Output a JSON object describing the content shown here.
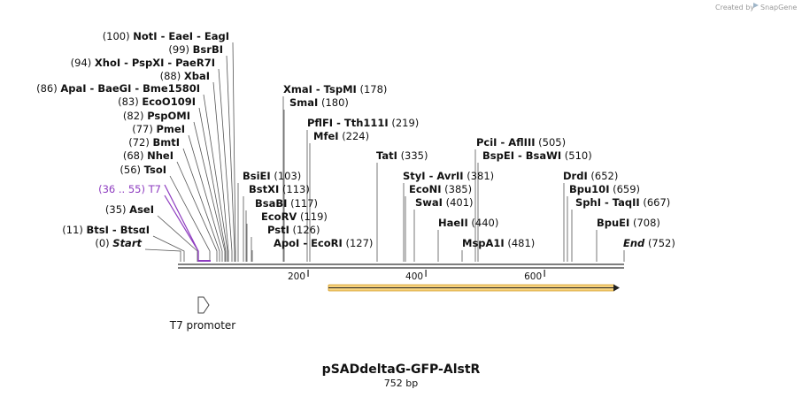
{
  "header": {
    "created_by": "Created by",
    "brand": "SnapGene"
  },
  "map": {
    "name": "pSADdeltaG-GFP-AlstR",
    "length_label": "752 bp"
  },
  "axis": {
    "ticks": [
      {
        "label": "200",
        "bp": 200
      },
      {
        "label": "400",
        "bp": 400
      },
      {
        "label": "600",
        "bp": 600
      }
    ]
  },
  "features": {
    "t7_promoter": {
      "label": "T7 promoter"
    },
    "orf_arrow": {
      "start_bp": 255,
      "end_bp": 752,
      "color": "#f0b040"
    }
  },
  "enzymes": [
    {
      "pos": "(0)",
      "names": [
        "Start"
      ],
      "italic": true,
      "bp": 0
    },
    {
      "pos": "(11)",
      "names": [
        "BtsI",
        "BtsαI"
      ],
      "bp": 11
    },
    {
      "pos": "(35)",
      "names": [
        "AseI"
      ],
      "bp": 35
    },
    {
      "pos": "(36 .. 55)",
      "names": [
        "T7"
      ],
      "site": true,
      "bp": 36
    },
    {
      "pos": "(56)",
      "names": [
        "TsoI"
      ],
      "bp": 56
    },
    {
      "pos": "(68)",
      "names": [
        "NheI"
      ],
      "bp": 68
    },
    {
      "pos": "(72)",
      "names": [
        "BmtI"
      ],
      "bp": 72
    },
    {
      "pos": "(77)",
      "names": [
        "PmeI"
      ],
      "bp": 77
    },
    {
      "pos": "(82)",
      "names": [
        "PspOMI"
      ],
      "bp": 82
    },
    {
      "pos": "(83)",
      "names": [
        "EcoO109I"
      ],
      "bp": 83
    },
    {
      "pos": "(86)",
      "names": [
        "ApaI",
        "BaeGI",
        "Bme1580I"
      ],
      "bp": 86
    },
    {
      "pos": "(88)",
      "names": [
        "XbaI"
      ],
      "bp": 88
    },
    {
      "pos": "(94)",
      "names": [
        "XhoI",
        "PspXI",
        "PaeR7I"
      ],
      "bp": 94
    },
    {
      "pos": "(99)",
      "names": [
        "BsrBI"
      ],
      "bp": 99
    },
    {
      "pos": "(100)",
      "names": [
        "NotI",
        "EaeI",
        "EagI"
      ],
      "bp": 100
    },
    {
      "pos": "(103)",
      "names": [
        "BsiEI"
      ],
      "bp": 103
    },
    {
      "pos": "(113)",
      "names": [
        "BstXI"
      ],
      "bp": 113
    },
    {
      "pos": "(117)",
      "names": [
        "BsaBI"
      ],
      "bp": 117
    },
    {
      "pos": "(119)",
      "names": [
        "EcoRV"
      ],
      "bp": 119
    },
    {
      "pos": "(126)",
      "names": [
        "PstI"
      ],
      "bp": 126
    },
    {
      "pos": "(127)",
      "names": [
        "ApoI",
        "EcoRI"
      ],
      "bp": 127
    },
    {
      "pos": "(178)",
      "names": [
        "XmaI",
        "TspMI"
      ],
      "bp": 178
    },
    {
      "pos": "(180)",
      "names": [
        "SmaI"
      ],
      "bp": 180
    },
    {
      "pos": "(219)",
      "names": [
        "PflFI",
        "Tth111I"
      ],
      "bp": 219
    },
    {
      "pos": "(224)",
      "names": [
        "MfeI"
      ],
      "bp": 224
    },
    {
      "pos": "(335)",
      "names": [
        "TatI"
      ],
      "bp": 335
    },
    {
      "pos": "(381)",
      "names": [
        "StyI",
        "AvrII"
      ],
      "bp": 381
    },
    {
      "pos": "(385)",
      "names": [
        "EcoNI"
      ],
      "bp": 385
    },
    {
      "pos": "(401)",
      "names": [
        "SwaI"
      ],
      "bp": 401
    },
    {
      "pos": "(440)",
      "names": [
        "HaeII"
      ],
      "bp": 440
    },
    {
      "pos": "(481)",
      "names": [
        "MspA1I"
      ],
      "bp": 481
    },
    {
      "pos": "(505)",
      "names": [
        "PciI",
        "AflIII"
      ],
      "bp": 505
    },
    {
      "pos": "(510)",
      "names": [
        "BspEI",
        "BsaWI"
      ],
      "bp": 510
    },
    {
      "pos": "(652)",
      "names": [
        "DrdI"
      ],
      "bp": 652
    },
    {
      "pos": "(659)",
      "names": [
        "Bpu10I"
      ],
      "bp": 659
    },
    {
      "pos": "(667)",
      "names": [
        "SphI",
        "TaqII"
      ],
      "bp": 667
    },
    {
      "pos": "(708)",
      "names": [
        "BpuEI"
      ],
      "bp": 708
    },
    {
      "pos": "(752)",
      "names": [
        "End"
      ],
      "italic": true,
      "bp": 752
    }
  ],
  "colors": {
    "site": "#8e3cc0",
    "line": "#333333",
    "orf": "#f0b040"
  }
}
